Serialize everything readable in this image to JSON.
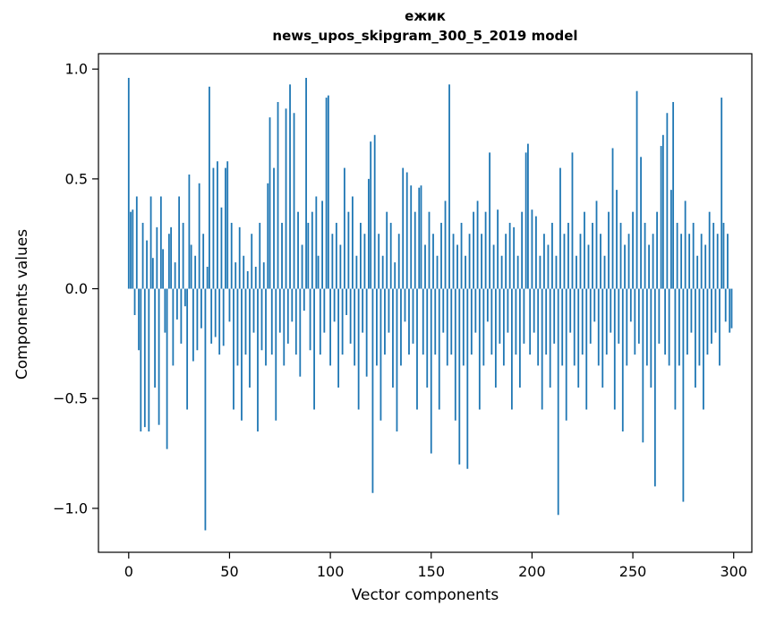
{
  "chart_data": {
    "type": "bar",
    "title": "ежик",
    "subtitle": "news_upos_skipgram_300_5_2019 model",
    "xlabel": "Vector components",
    "ylabel": "Components values",
    "bar_color": "#1f77b4",
    "xlim": [
      -15,
      309
    ],
    "ylim": [
      -1.2,
      1.07
    ],
    "xticks": [
      0,
      50,
      100,
      150,
      200,
      250,
      300
    ],
    "yticks": [
      1.0,
      0.5,
      0.0,
      -0.5,
      -1.0
    ],
    "x_start": 0,
    "values": [
      0.96,
      0.35,
      0.36,
      -0.12,
      0.42,
      -0.28,
      -0.65,
      0.3,
      -0.63,
      0.22,
      -0.65,
      0.42,
      0.14,
      -0.45,
      0.28,
      -0.62,
      0.42,
      0.18,
      -0.2,
      -0.73,
      0.25,
      0.28,
      -0.35,
      0.12,
      -0.14,
      0.42,
      -0.25,
      0.3,
      -0.08,
      -0.55,
      0.52,
      0.2,
      -0.33,
      0.15,
      -0.28,
      0.48,
      -0.18,
      0.25,
      -1.1,
      0.1,
      0.92,
      -0.25,
      0.55,
      -0.22,
      0.58,
      -0.3,
      0.37,
      -0.26,
      0.55,
      0.58,
      -0.15,
      0.3,
      -0.55,
      0.12,
      -0.35,
      0.28,
      -0.6,
      0.15,
      -0.3,
      0.08,
      -0.45,
      0.25,
      -0.2,
      0.1,
      -0.65,
      0.3,
      -0.28,
      0.12,
      -0.35,
      0.48,
      0.78,
      -0.3,
      0.55,
      -0.6,
      0.85,
      -0.2,
      0.3,
      -0.35,
      0.82,
      -0.25,
      0.93,
      -0.15,
      0.8,
      -0.3,
      0.35,
      -0.4,
      0.2,
      -0.1,
      0.96,
      0.3,
      -0.28,
      0.35,
      -0.55,
      0.42,
      0.15,
      -0.3,
      0.4,
      -0.2,
      0.87,
      0.88,
      -0.35,
      0.25,
      -0.15,
      0.3,
      -0.45,
      0.2,
      -0.3,
      0.55,
      -0.12,
      0.35,
      -0.25,
      0.42,
      -0.35,
      0.15,
      -0.55,
      0.3,
      -0.2,
      0.25,
      -0.4,
      0.5,
      0.67,
      -0.93,
      0.7,
      -0.35,
      0.25,
      -0.6,
      0.15,
      -0.3,
      0.35,
      -0.2,
      0.3,
      -0.45,
      0.12,
      -0.65,
      0.25,
      -0.35,
      0.55,
      -0.15,
      0.53,
      -0.3,
      0.47,
      -0.25,
      0.35,
      -0.55,
      0.46,
      0.47,
      -0.3,
      0.2,
      -0.45,
      0.35,
      -0.75,
      0.25,
      -0.3,
      0.15,
      -0.55,
      0.3,
      -0.2,
      0.4,
      -0.35,
      0.93,
      -0.3,
      0.25,
      -0.6,
      0.2,
      -0.8,
      0.3,
      -0.35,
      0.15,
      -0.82,
      0.25,
      -0.3,
      0.35,
      -0.2,
      0.4,
      -0.55,
      0.25,
      -0.35,
      0.35,
      -0.15,
      0.62,
      -0.3,
      0.2,
      -0.45,
      0.36,
      -0.25,
      0.15,
      -0.35,
      0.25,
      -0.2,
      0.3,
      -0.55,
      0.28,
      -0.3,
      0.15,
      -0.45,
      0.35,
      -0.25,
      0.62,
      0.66,
      -0.3,
      0.36,
      -0.2,
      0.33,
      -0.35,
      0.15,
      -0.55,
      0.25,
      -0.3,
      0.2,
      -0.45,
      0.3,
      -0.25,
      0.15,
      -1.03,
      0.55,
      -0.35,
      0.25,
      -0.6,
      0.3,
      -0.2,
      0.62,
      -0.35,
      0.15,
      -0.45,
      0.25,
      -0.3,
      0.35,
      -0.55,
      0.2,
      -0.25,
      0.3,
      -0.15,
      0.4,
      -0.35,
      0.25,
      -0.45,
      0.15,
      -0.3,
      0.35,
      -0.2,
      0.64,
      -0.55,
      0.45,
      -0.25,
      0.3,
      -0.65,
      0.2,
      -0.35,
      0.25,
      -0.15,
      0.35,
      -0.3,
      0.9,
      -0.25,
      0.6,
      -0.7,
      0.3,
      -0.35,
      0.2,
      -0.45,
      0.25,
      -0.9,
      0.35,
      -0.25,
      0.65,
      0.7,
      -0.3,
      0.8,
      -0.35,
      0.45,
      0.85,
      -0.55,
      0.3,
      -0.35,
      0.25,
      -0.97,
      0.4,
      -0.3,
      0.25,
      -0.2,
      0.3,
      -0.45,
      0.15,
      -0.35,
      0.25,
      -0.55,
      0.2,
      -0.3,
      0.35,
      -0.25,
      0.3,
      -0.2,
      0.25,
      -0.35,
      0.87,
      0.3,
      -0.15,
      0.25,
      -0.2,
      -0.18
    ]
  }
}
